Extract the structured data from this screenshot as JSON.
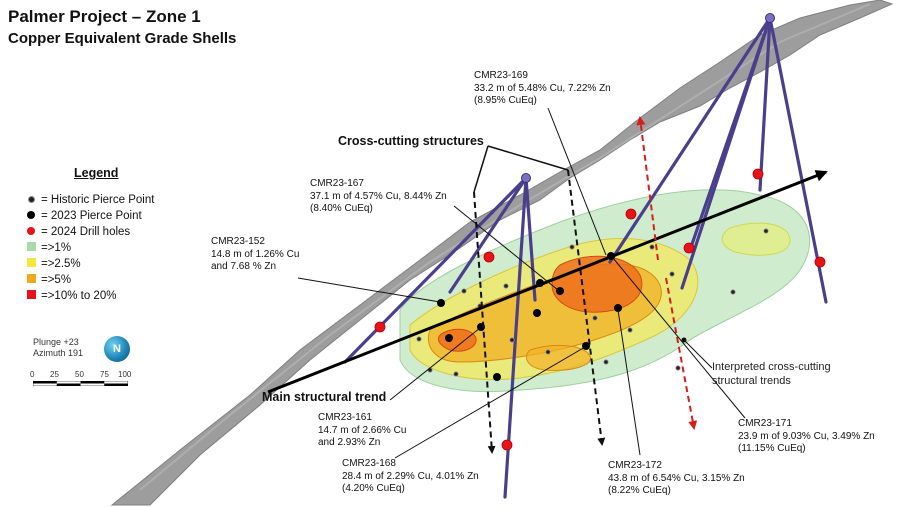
{
  "header": {
    "title": "Palmer Project – Zone 1",
    "subtitle": "Copper Equivalent Grade Shells"
  },
  "legend": {
    "title": "Legend",
    "items": [
      {
        "label": "= Historic Pierce Point",
        "symbol": "small-black-dot"
      },
      {
        "label": "= 2023 Pierce Point",
        "symbol": "black-dot"
      },
      {
        "label": "= 2024 Drill holes",
        "symbol": "red-dot"
      },
      {
        "label": "=>1%",
        "symbol": "square",
        "color": "#a8dba8"
      },
      {
        "label": "=>2.5%",
        "symbol": "square",
        "color": "#f5e83a"
      },
      {
        "label": "=>5%",
        "symbol": "square",
        "color": "#f0a81c"
      },
      {
        "label": "=>10% to 20%",
        "symbol": "square",
        "color": "#e8121a"
      }
    ]
  },
  "orientation": {
    "plunge": "Plunge +23",
    "azimuth": "Azimuth 191",
    "compass_letter": "N",
    "scale_ticks": [
      "0",
      "25",
      "50",
      "75",
      "100"
    ]
  },
  "callouts": {
    "cross_cutting": "Cross-cutting structures",
    "main_trend": "Main structural trend",
    "interpreted_line1": "Interpreted cross-cutting",
    "interpreted_line2": "structural trends"
  },
  "intercepts": [
    {
      "hole": "CMR23-169",
      "line1": "33.2 m of 5.48% Cu, 7.22% Zn",
      "line2": "(8.95% CuEq)"
    },
    {
      "hole": "CMR23-167",
      "line1": "37.1 m of 4.57% Cu, 8.44% Zn",
      "line2": "(8.40% CuEq)"
    },
    {
      "hole": "CMR23-152",
      "line1": "14.8 m of 1.26% Cu",
      "line2": "and 7.68 % Zn"
    },
    {
      "hole": "CMR23-161",
      "line1": "14.7 m of 2.66% Cu",
      "line2": "and 2.93% Zn"
    },
    {
      "hole": "CMR23-168",
      "line1": "28.4 m of 2.29% Cu, 4.01% Zn",
      "line2": "(4.20% CuEq)"
    },
    {
      "hole": "CMR23-172",
      "line1": "43.8 m of 6.54% Cu, 3.15% Zn",
      "line2": "(8.22% CuEq)"
    },
    {
      "hole": "CMR23-171",
      "line1": "23.9 m of 9.03% Cu, 3.49% Zn",
      "line2": "(11.15% CuEq)"
    }
  ],
  "colors": {
    "drill_hole": "#4a3f8c",
    "topo_surface": "#8a8a8a",
    "cross_cut_arrow": "#111111",
    "interpreted_arrow": "#d81b1b",
    "shell_1pct": "#a8dba8",
    "shell_2_5pct": "#f5e83a",
    "shell_5pct": "#f0a81c",
    "shell_10pct": "#e8121a"
  }
}
